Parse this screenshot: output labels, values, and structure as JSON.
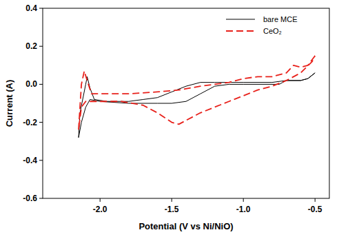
{
  "chart_data": {
    "type": "line",
    "x_label": "Potential (V vs Ni/NiO)",
    "y_label": "Current (A)",
    "xlim": [
      -2.4,
      -0.4
    ],
    "xticks": [
      {
        "value": -2.0,
        "label": "-2.0"
      },
      -1.5,
      {
        "value": -1.0,
        "label": "-1.0"
      },
      -0.5
    ],
    "ylim": [
      -0.6,
      0.4
    ],
    "yticks": [
      -0.6,
      -0.4,
      -0.2,
      {
        "value": 0,
        "label": "0.0"
      },
      0.2,
      0.4
    ],
    "grid": false,
    "legend": "upper right",
    "series": [
      {
        "name": "bare MCE",
        "color": "#000000",
        "line_style": "solid",
        "x": [
          -0.5,
          -0.55,
          -0.6,
          -0.7,
          -0.75,
          -0.9,
          -1.0,
          -1.1,
          -1.2,
          -1.3,
          -1.4,
          -1.5,
          -1.6,
          -1.8,
          -2.0,
          -2.07,
          -2.1,
          -2.13,
          -2.15,
          -2.14,
          -2.1,
          -2.09,
          -2.07,
          -2.04,
          -1.95,
          -1.8,
          -1.7,
          -1.6,
          -1.5,
          -1.4,
          -1.3,
          -1.2,
          -1.0,
          -0.9,
          -0.8,
          -0.7,
          -0.6,
          -0.55,
          -0.5
        ],
        "values": [
          0.06,
          0.03,
          0.02,
          0.02,
          0.0,
          0.0,
          0.0,
          0.0,
          -0.01,
          -0.05,
          -0.09,
          -0.1,
          -0.1,
          -0.1,
          -0.09,
          -0.08,
          -0.12,
          -0.2,
          -0.28,
          -0.15,
          0.0,
          0.04,
          -0.02,
          -0.08,
          -0.09,
          -0.09,
          -0.08,
          -0.07,
          -0.04,
          -0.01,
          0.01,
          0.01,
          0.01,
          0.01,
          0.01,
          0.02,
          0.02,
          0.03,
          0.06
        ]
      },
      {
        "name": "CeO₂",
        "color": "#e8201a",
        "line_style": "dashed",
        "x": [
          -0.5,
          -0.55,
          -0.6,
          -0.65,
          -0.7,
          -0.8,
          -0.9,
          -1.0,
          -1.1,
          -1.2,
          -1.3,
          -1.45,
          -1.6,
          -1.8,
          -2.0,
          -2.06,
          -2.09,
          -2.11,
          -2.13,
          -2.15,
          -2.13,
          -2.1,
          -2.0,
          -1.85,
          -1.7,
          -1.6,
          -1.5,
          -1.45,
          -1.4,
          -1.3,
          -1.2,
          -1.1,
          -1.0,
          -0.9,
          -0.8,
          -0.7,
          -0.6,
          -0.52,
          -0.5
        ],
        "values": [
          0.15,
          0.1,
          0.09,
          0.1,
          0.06,
          0.04,
          0.04,
          0.03,
          0.01,
          0.0,
          -0.01,
          -0.03,
          -0.04,
          -0.05,
          -0.05,
          -0.05,
          0.02,
          0.07,
          0.0,
          -0.24,
          -0.12,
          -0.09,
          -0.09,
          -0.09,
          -0.11,
          -0.15,
          -0.2,
          -0.21,
          -0.19,
          -0.15,
          -0.12,
          -0.09,
          -0.06,
          -0.03,
          -0.01,
          0.02,
          0.06,
          0.12,
          0.15
        ]
      }
    ]
  }
}
